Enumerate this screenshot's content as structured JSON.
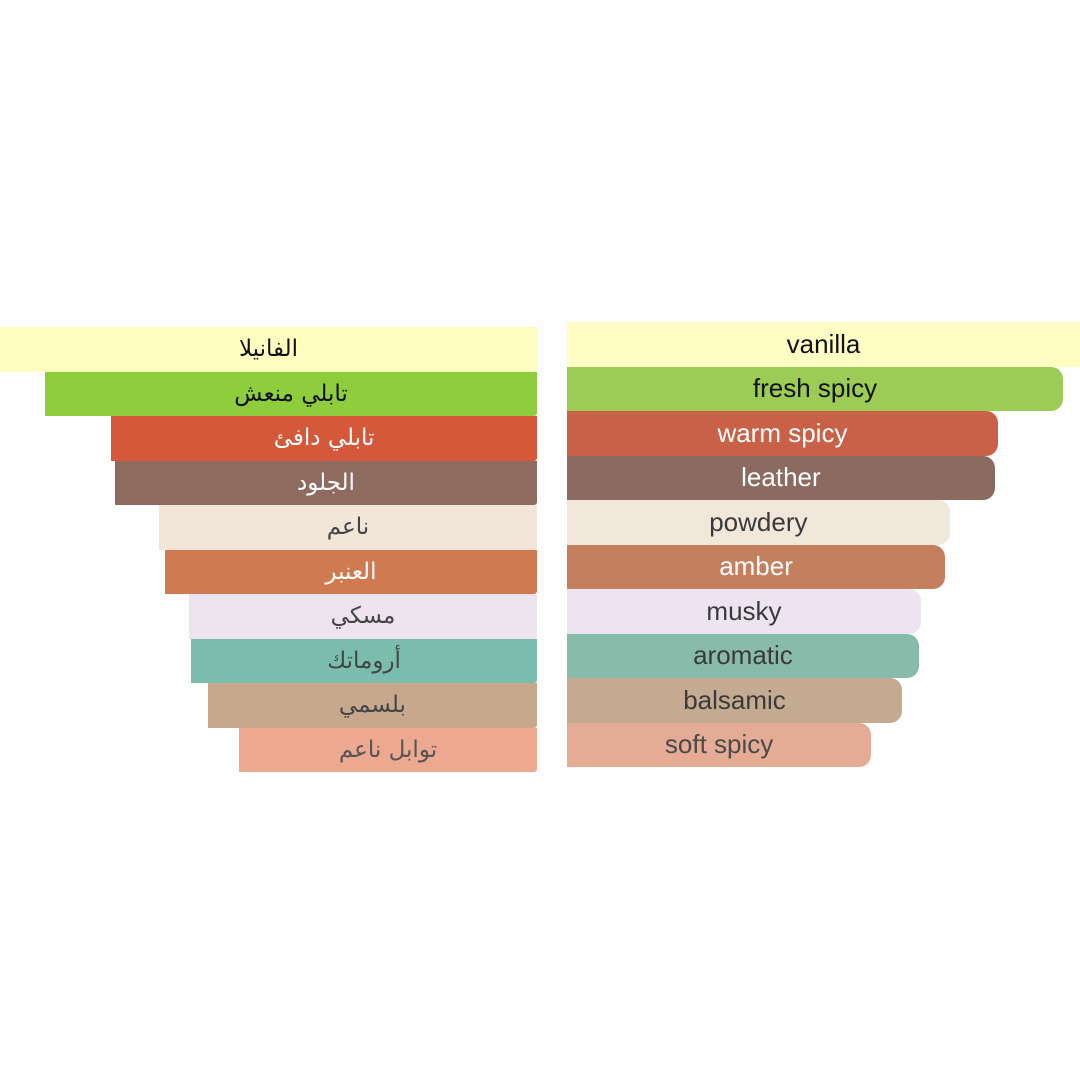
{
  "chart_data": [
    {
      "type": "bar",
      "orientation": "horizontal",
      "direction": "right-to-left",
      "categories": [
        "الفانيلا",
        "تابلي منعش",
        "تابلي دافئ",
        "الجلود",
        "ناعم",
        "العنبر",
        "مسكي",
        "أروماتك",
        "بلسمي",
        "توابل ناعم"
      ],
      "values": [
        100,
        91.6,
        79.3,
        78.6,
        70.4,
        69.3,
        64.8,
        64.4,
        61.3,
        55.5
      ],
      "colors": [
        "#FFFCC0",
        "#8ECE3C",
        "#D6583B",
        "#8F6A5E",
        "#F2E6D8",
        "#D07A52",
        "#EDE4F0",
        "#7BBDAD",
        "#C8A88C",
        "#EDA890"
      ],
      "text_colors": [
        "#111111",
        "#111111",
        "#ffffff",
        "#ffffff",
        "#444444",
        "#ffffff",
        "#444444",
        "#444444",
        "#444444",
        "#555555"
      ]
    },
    {
      "type": "bar",
      "orientation": "horizontal",
      "direction": "left-to-right",
      "categories": [
        "vanilla",
        "fresh spicy",
        "warm spicy",
        "leather",
        "powdery",
        "amber",
        "musky",
        "aromatic",
        "balsamic",
        "soft spicy"
      ],
      "values": [
        100,
        96.7,
        84,
        83.4,
        74.6,
        73.7,
        69,
        68.6,
        65.3,
        59.3
      ],
      "colors": [
        "#FFFDC4",
        "#9CCB56",
        "#C86147",
        "#8B6B5F",
        "#F2E7DB",
        "#C47F5E",
        "#ECE4F0",
        "#89BBAB",
        "#C4AA91",
        "#E4AC95"
      ],
      "text_colors": [
        "#111111",
        "#111111",
        "#ffffff",
        "#ffffff",
        "#3a3a3a",
        "#ffffff",
        "#3a3a3a",
        "#3a3a3a",
        "#3a3a3a",
        "#4a4a4a"
      ]
    }
  ]
}
